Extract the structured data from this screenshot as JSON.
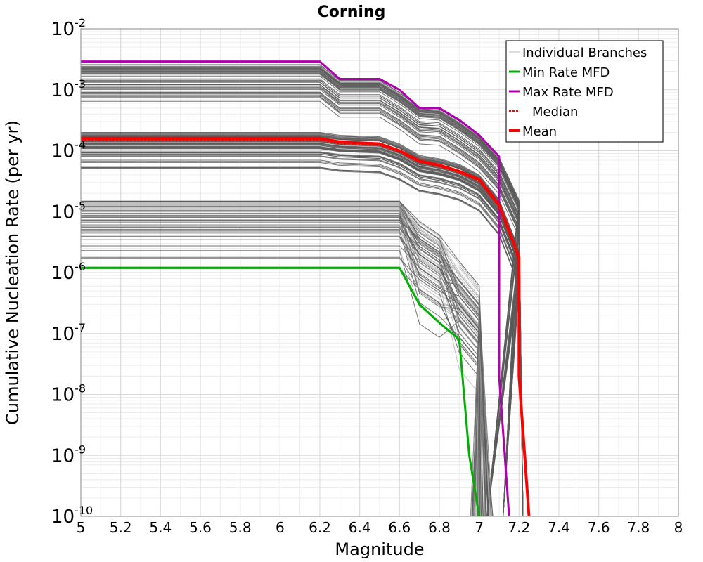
{
  "chart_data": {
    "type": "line",
    "title": "Corning",
    "xlabel": "Magnitude",
    "ylabel": "Cumulative Nucleation Rate (per yr)",
    "xlim": [
      5,
      8
    ],
    "ylim": [
      1e-10,
      0.01
    ],
    "yscale": "log",
    "grid": true,
    "legend_position": "top-right",
    "x_tick_labels": [
      "5",
      "5.2",
      "5.4",
      "5.6",
      "5.8",
      "6",
      "6.2",
      "6.4",
      "6.6",
      "6.8",
      "7",
      "7.2",
      "7.4",
      "7.6",
      "7.8",
      "8"
    ],
    "y_tick_labels": [
      {
        "base": "10",
        "exp": "-10",
        "value": 1e-10
      },
      {
        "base": "10",
        "exp": "-9",
        "value": 1e-09
      },
      {
        "base": "10",
        "exp": "-8",
        "value": 1e-08
      },
      {
        "base": "10",
        "exp": "-7",
        "value": 1e-07
      },
      {
        "base": "10",
        "exp": "-6",
        "value": 1e-06
      },
      {
        "base": "10",
        "exp": "-5",
        "value": 1e-05
      },
      {
        "base": "10",
        "exp": "-4",
        "value": 0.0001
      },
      {
        "base": "10",
        "exp": "-3",
        "value": 0.001
      },
      {
        "base": "10",
        "exp": "-2",
        "value": 0.01
      }
    ],
    "legend": [
      {
        "label": "Individual Branches",
        "color": "#bbbbbb",
        "style": "solid-thin"
      },
      {
        "label": "Min Rate MFD",
        "color": "#00b000",
        "style": "solid"
      },
      {
        "label": "Max Rate MFD",
        "color": "#b000b0",
        "style": "solid"
      },
      {
        "label": "Median",
        "color": "#ff0000",
        "style": "dotted"
      },
      {
        "label": "Mean",
        "color": "#ff0000",
        "style": "solid-thick"
      }
    ],
    "series": [
      {
        "name": "Max Rate MFD",
        "color": "#b000b0",
        "x": [
          5.0,
          6.2,
          6.3,
          6.5,
          6.6,
          6.7,
          6.8,
          6.9,
          7.0,
          7.1,
          7.1,
          7.15
        ],
        "y": [
          0.0029,
          0.0029,
          0.0015,
          0.0015,
          0.001,
          0.0005,
          0.0005,
          0.00032,
          0.00018,
          8e-05,
          2e-08,
          1e-10
        ]
      },
      {
        "name": "Mean",
        "color": "#ff0000",
        "x": [
          5.0,
          6.2,
          6.3,
          6.5,
          6.6,
          6.7,
          6.8,
          6.9,
          7.0,
          7.1,
          7.2,
          7.2,
          7.25
        ],
        "y": [
          0.00016,
          0.00016,
          0.00014,
          0.00013,
          0.0001,
          6.8e-05,
          5.8e-05,
          4.6e-05,
          3.4e-05,
          1.3e-05,
          1.8e-06,
          2e-08,
          1e-10
        ]
      },
      {
        "name": "Median",
        "color": "#ff0000",
        "x": [
          5.0,
          6.2,
          6.3,
          6.5,
          6.6,
          6.7,
          6.8,
          6.9,
          7.0,
          7.1,
          7.2,
          7.2,
          7.25
        ],
        "y": [
          0.00015,
          0.00015,
          0.00013,
          0.000125,
          9.5e-05,
          6.5e-05,
          5.5e-05,
          4.4e-05,
          3.2e-05,
          1.2e-05,
          1.6e-06,
          2e-08,
          1e-10
        ]
      },
      {
        "name": "Min Rate MFD",
        "color": "#00b000",
        "x": [
          5.0,
          6.6,
          6.7,
          6.8,
          6.9,
          6.95,
          7.0
        ],
        "y": [
          1.2e-06,
          1.2e-06,
          3e-07,
          1.5e-07,
          8e-08,
          1e-09,
          1e-10
        ]
      }
    ]
  }
}
